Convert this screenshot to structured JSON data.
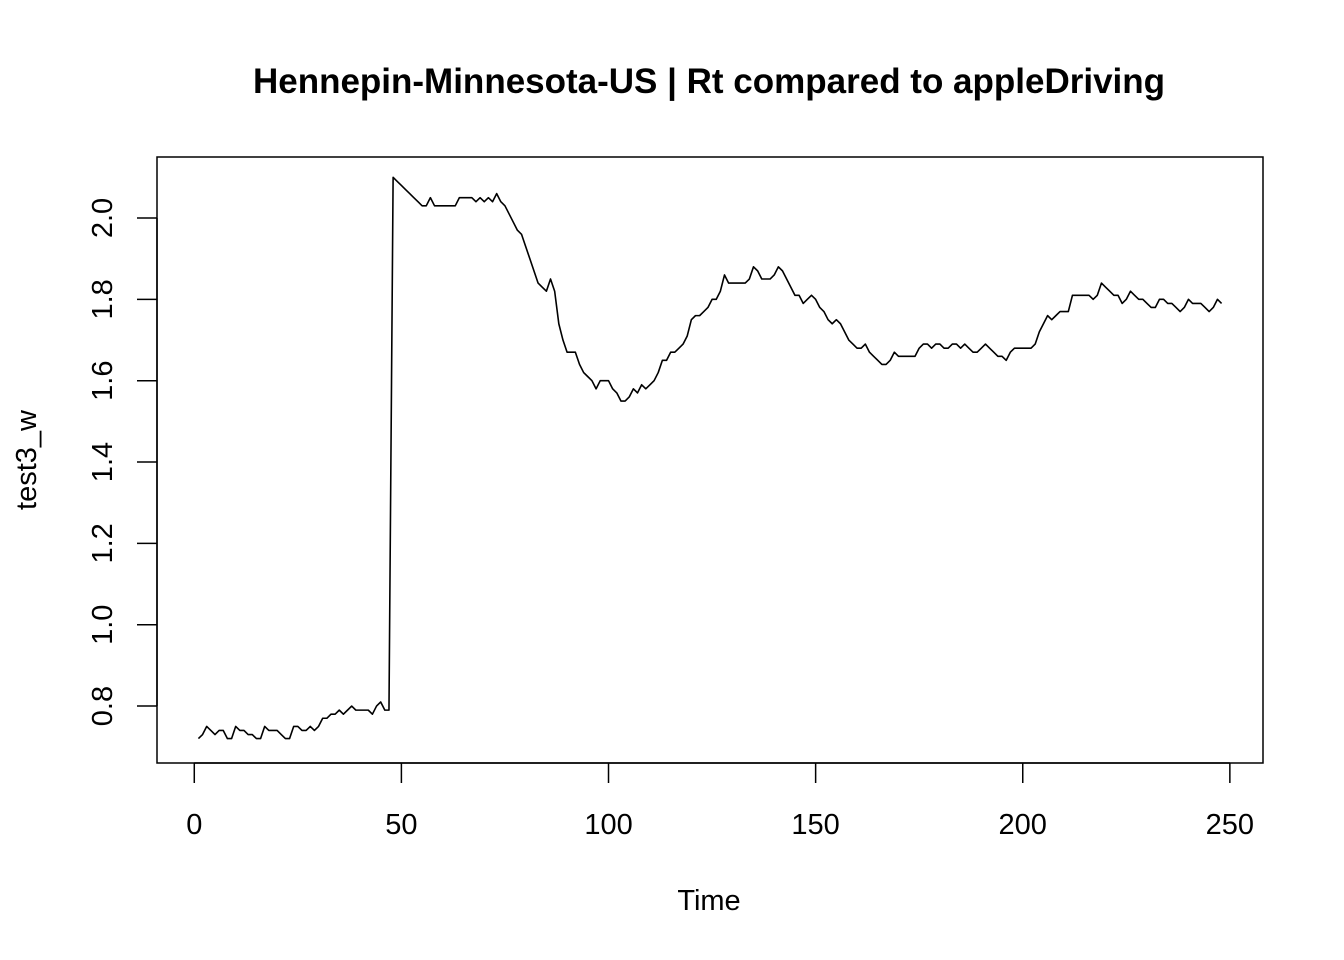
{
  "chart_data": {
    "type": "line",
    "title": "Hennepin-Minnesota-US | Rt compared to appleDriving",
    "xlabel": "Time",
    "ylabel": "test3_w",
    "xlim": [
      -9,
      258
    ],
    "ylim": [
      0.66,
      2.15
    ],
    "xticks": [
      0,
      50,
      100,
      150,
      200,
      250
    ],
    "xtick_labels": [
      "0",
      "50",
      "100",
      "150",
      "200",
      "250"
    ],
    "yticks": [
      0.8,
      1.0,
      1.2,
      1.4,
      1.6,
      1.8,
      2.0
    ],
    "ytick_labels": [
      "0.8",
      "1.0",
      "1.2",
      "1.4",
      "1.6",
      "1.8",
      "2.0"
    ],
    "grid": false,
    "legend": "none",
    "color": "#000000",
    "series": [
      {
        "points": [
          [
            1,
            0.72
          ],
          [
            2,
            0.73
          ],
          [
            3,
            0.75
          ],
          [
            4,
            0.74
          ],
          [
            5,
            0.73
          ],
          [
            6,
            0.74
          ],
          [
            7,
            0.74
          ],
          [
            8,
            0.72
          ],
          [
            9,
            0.72
          ],
          [
            10,
            0.75
          ],
          [
            11,
            0.74
          ],
          [
            12,
            0.74
          ],
          [
            13,
            0.73
          ],
          [
            14,
            0.73
          ],
          [
            15,
            0.72
          ],
          [
            16,
            0.72
          ],
          [
            17,
            0.75
          ],
          [
            18,
            0.74
          ],
          [
            19,
            0.74
          ],
          [
            20,
            0.74
          ],
          [
            21,
            0.73
          ],
          [
            22,
            0.72
          ],
          [
            23,
            0.72
          ],
          [
            24,
            0.75
          ],
          [
            25,
            0.75
          ],
          [
            26,
            0.74
          ],
          [
            27,
            0.74
          ],
          [
            28,
            0.75
          ],
          [
            29,
            0.74
          ],
          [
            30,
            0.75
          ],
          [
            31,
            0.77
          ],
          [
            32,
            0.77
          ],
          [
            33,
            0.78
          ],
          [
            34,
            0.78
          ],
          [
            35,
            0.79
          ],
          [
            36,
            0.78
          ],
          [
            37,
            0.79
          ],
          [
            38,
            0.8
          ],
          [
            39,
            0.79
          ],
          [
            40,
            0.79
          ],
          [
            41,
            0.79
          ],
          [
            42,
            0.79
          ],
          [
            43,
            0.78
          ],
          [
            44,
            0.8
          ],
          [
            45,
            0.81
          ],
          [
            46,
            0.79
          ],
          [
            47,
            0.79
          ],
          [
            48,
            2.1
          ],
          [
            49,
            2.09
          ],
          [
            50,
            2.08
          ],
          [
            51,
            2.07
          ],
          [
            52,
            2.06
          ],
          [
            53,
            2.05
          ],
          [
            54,
            2.04
          ],
          [
            55,
            2.03
          ],
          [
            56,
            2.03
          ],
          [
            57,
            2.05
          ],
          [
            58,
            2.03
          ],
          [
            59,
            2.03
          ],
          [
            60,
            2.03
          ],
          [
            61,
            2.03
          ],
          [
            62,
            2.03
          ],
          [
            63,
            2.03
          ],
          [
            64,
            2.05
          ],
          [
            65,
            2.05
          ],
          [
            66,
            2.05
          ],
          [
            67,
            2.05
          ],
          [
            68,
            2.04
          ],
          [
            69,
            2.05
          ],
          [
            70,
            2.04
          ],
          [
            71,
            2.05
          ],
          [
            72,
            2.04
          ],
          [
            73,
            2.06
          ],
          [
            74,
            2.04
          ],
          [
            75,
            2.03
          ],
          [
            76,
            2.01
          ],
          [
            77,
            1.99
          ],
          [
            78,
            1.97
          ],
          [
            79,
            1.96
          ],
          [
            80,
            1.93
          ],
          [
            81,
            1.9
          ],
          [
            82,
            1.87
          ],
          [
            83,
            1.84
          ],
          [
            84,
            1.83
          ],
          [
            85,
            1.82
          ],
          [
            86,
            1.85
          ],
          [
            87,
            1.82
          ],
          [
            88,
            1.74
          ],
          [
            89,
            1.7
          ],
          [
            90,
            1.67
          ],
          [
            91,
            1.67
          ],
          [
            92,
            1.67
          ],
          [
            93,
            1.64
          ],
          [
            94,
            1.62
          ],
          [
            95,
            1.61
          ],
          [
            96,
            1.6
          ],
          [
            97,
            1.58
          ],
          [
            98,
            1.6
          ],
          [
            99,
            1.6
          ],
          [
            100,
            1.6
          ],
          [
            101,
            1.58
          ],
          [
            102,
            1.57
          ],
          [
            103,
            1.55
          ],
          [
            104,
            1.55
          ],
          [
            105,
            1.56
          ],
          [
            106,
            1.58
          ],
          [
            107,
            1.57
          ],
          [
            108,
            1.59
          ],
          [
            109,
            1.58
          ],
          [
            110,
            1.59
          ],
          [
            111,
            1.6
          ],
          [
            112,
            1.62
          ],
          [
            113,
            1.65
          ],
          [
            114,
            1.65
          ],
          [
            115,
            1.67
          ],
          [
            116,
            1.67
          ],
          [
            117,
            1.68
          ],
          [
            118,
            1.69
          ],
          [
            119,
            1.71
          ],
          [
            120,
            1.75
          ],
          [
            121,
            1.76
          ],
          [
            122,
            1.76
          ],
          [
            123,
            1.77
          ],
          [
            124,
            1.78
          ],
          [
            125,
            1.8
          ],
          [
            126,
            1.8
          ],
          [
            127,
            1.82
          ],
          [
            128,
            1.86
          ],
          [
            129,
            1.84
          ],
          [
            130,
            1.84
          ],
          [
            131,
            1.84
          ],
          [
            132,
            1.84
          ],
          [
            133,
            1.84
          ],
          [
            134,
            1.85
          ],
          [
            135,
            1.88
          ],
          [
            136,
            1.87
          ],
          [
            137,
            1.85
          ],
          [
            138,
            1.85
          ],
          [
            139,
            1.85
          ],
          [
            140,
            1.86
          ],
          [
            141,
            1.88
          ],
          [
            142,
            1.87
          ],
          [
            143,
            1.85
          ],
          [
            144,
            1.83
          ],
          [
            145,
            1.81
          ],
          [
            146,
            1.81
          ],
          [
            147,
            1.79
          ],
          [
            148,
            1.8
          ],
          [
            149,
            1.81
          ],
          [
            150,
            1.8
          ],
          [
            151,
            1.78
          ],
          [
            152,
            1.77
          ],
          [
            153,
            1.75
          ],
          [
            154,
            1.74
          ],
          [
            155,
            1.75
          ],
          [
            156,
            1.74
          ],
          [
            157,
            1.72
          ],
          [
            158,
            1.7
          ],
          [
            159,
            1.69
          ],
          [
            160,
            1.68
          ],
          [
            161,
            1.68
          ],
          [
            162,
            1.69
          ],
          [
            163,
            1.67
          ],
          [
            164,
            1.66
          ],
          [
            165,
            1.65
          ],
          [
            166,
            1.64
          ],
          [
            167,
            1.64
          ],
          [
            168,
            1.65
          ],
          [
            169,
            1.67
          ],
          [
            170,
            1.66
          ],
          [
            171,
            1.66
          ],
          [
            172,
            1.66
          ],
          [
            173,
            1.66
          ],
          [
            174,
            1.66
          ],
          [
            175,
            1.68
          ],
          [
            176,
            1.69
          ],
          [
            177,
            1.69
          ],
          [
            178,
            1.68
          ],
          [
            179,
            1.69
          ],
          [
            180,
            1.69
          ],
          [
            181,
            1.68
          ],
          [
            182,
            1.68
          ],
          [
            183,
            1.69
          ],
          [
            184,
            1.69
          ],
          [
            185,
            1.68
          ],
          [
            186,
            1.69
          ],
          [
            187,
            1.68
          ],
          [
            188,
            1.67
          ],
          [
            189,
            1.67
          ],
          [
            190,
            1.68
          ],
          [
            191,
            1.69
          ],
          [
            192,
            1.68
          ],
          [
            193,
            1.67
          ],
          [
            194,
            1.66
          ],
          [
            195,
            1.66
          ],
          [
            196,
            1.65
          ],
          [
            197,
            1.67
          ],
          [
            198,
            1.68
          ],
          [
            199,
            1.68
          ],
          [
            200,
            1.68
          ],
          [
            201,
            1.68
          ],
          [
            202,
            1.68
          ],
          [
            203,
            1.69
          ],
          [
            204,
            1.72
          ],
          [
            205,
            1.74
          ],
          [
            206,
            1.76
          ],
          [
            207,
            1.75
          ],
          [
            208,
            1.76
          ],
          [
            209,
            1.77
          ],
          [
            210,
            1.77
          ],
          [
            211,
            1.77
          ],
          [
            212,
            1.81
          ],
          [
            213,
            1.81
          ],
          [
            214,
            1.81
          ],
          [
            215,
            1.81
          ],
          [
            216,
            1.81
          ],
          [
            217,
            1.8
          ],
          [
            218,
            1.81
          ],
          [
            219,
            1.84
          ],
          [
            220,
            1.83
          ],
          [
            221,
            1.82
          ],
          [
            222,
            1.81
          ],
          [
            223,
            1.81
          ],
          [
            224,
            1.79
          ],
          [
            225,
            1.8
          ],
          [
            226,
            1.82
          ],
          [
            227,
            1.81
          ],
          [
            228,
            1.8
          ],
          [
            229,
            1.8
          ],
          [
            230,
            1.79
          ],
          [
            231,
            1.78
          ],
          [
            232,
            1.78
          ],
          [
            233,
            1.8
          ],
          [
            234,
            1.8
          ],
          [
            235,
            1.79
          ],
          [
            236,
            1.79
          ],
          [
            237,
            1.78
          ],
          [
            238,
            1.77
          ],
          [
            239,
            1.78
          ],
          [
            240,
            1.8
          ],
          [
            241,
            1.79
          ],
          [
            242,
            1.79
          ],
          [
            243,
            1.79
          ],
          [
            244,
            1.78
          ],
          [
            245,
            1.77
          ],
          [
            246,
            1.78
          ],
          [
            247,
            1.8
          ],
          [
            248,
            1.79
          ]
        ]
      }
    ]
  }
}
